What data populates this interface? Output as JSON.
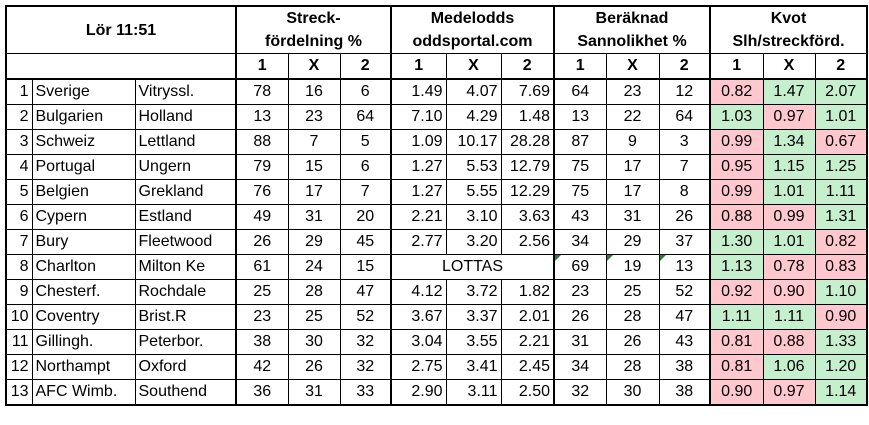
{
  "header": {
    "title": "Lör 11:51",
    "group1": [
      "Streck-",
      "fördelning %"
    ],
    "group2": [
      "Medelodds",
      "oddsportal.com"
    ],
    "group3": [
      "Beräknad",
      "Sannolikhet %"
    ],
    "group4": [
      "Kvot",
      "Slh/streckförd."
    ],
    "sub": [
      "1",
      "X",
      "2"
    ]
  },
  "lottas_label": "LOTTAS",
  "colors": {
    "red": "#ffc7ce",
    "green": "#c6efce"
  },
  "rows": [
    {
      "n": "1",
      "home": "Sverige",
      "away": "Vitryssl.",
      "s": [
        "78",
        "16",
        "6"
      ],
      "o": [
        "1.49",
        "4.07",
        "7.69"
      ],
      "p": [
        "64",
        "23",
        "12"
      ],
      "k": [
        "0.82",
        "1.47",
        "2.07"
      ],
      "kc": [
        "red",
        "grn",
        "grn"
      ]
    },
    {
      "n": "2",
      "home": "Bulgarien",
      "away": "Holland",
      "s": [
        "13",
        "23",
        "64"
      ],
      "o": [
        "7.10",
        "4.29",
        "1.48"
      ],
      "p": [
        "13",
        "22",
        "64"
      ],
      "k": [
        "1.03",
        "0.97",
        "1.01"
      ],
      "kc": [
        "grn",
        "red",
        "grn"
      ]
    },
    {
      "n": "3",
      "home": "Schweiz",
      "away": "Lettland",
      "s": [
        "88",
        "7",
        "5"
      ],
      "o": [
        "1.09",
        "10.17",
        "28.28"
      ],
      "p": [
        "87",
        "9",
        "3"
      ],
      "k": [
        "0.99",
        "1.34",
        "0.67"
      ],
      "kc": [
        "red",
        "grn",
        "red"
      ]
    },
    {
      "n": "4",
      "home": "Portugal",
      "away": "Ungern",
      "s": [
        "79",
        "15",
        "6"
      ],
      "o": [
        "1.27",
        "5.53",
        "12.79"
      ],
      "p": [
        "75",
        "17",
        "7"
      ],
      "k": [
        "0.95",
        "1.15",
        "1.25"
      ],
      "kc": [
        "red",
        "grn",
        "grn"
      ]
    },
    {
      "n": "5",
      "home": "Belgien",
      "away": "Grekland",
      "s": [
        "76",
        "17",
        "7"
      ],
      "o": [
        "1.27",
        "5.55",
        "12.29"
      ],
      "p": [
        "75",
        "17",
        "8"
      ],
      "k": [
        "0.99",
        "1.01",
        "1.11"
      ],
      "kc": [
        "red",
        "grn",
        "grn"
      ]
    },
    {
      "n": "6",
      "home": "Cypern",
      "away": "Estland",
      "s": [
        "49",
        "31",
        "20"
      ],
      "o": [
        "2.21",
        "3.10",
        "3.63"
      ],
      "p": [
        "43",
        "31",
        "26"
      ],
      "k": [
        "0.88",
        "0.99",
        "1.31"
      ],
      "kc": [
        "red",
        "red",
        "grn"
      ]
    },
    {
      "n": "7",
      "home": "Bury",
      "away": "Fleetwood",
      "s": [
        "26",
        "29",
        "45"
      ],
      "o": [
        "2.77",
        "3.20",
        "2.56"
      ],
      "p": [
        "34",
        "29",
        "37"
      ],
      "k": [
        "1.30",
        "1.01",
        "0.82"
      ],
      "kc": [
        "grn",
        "grn",
        "red"
      ]
    },
    {
      "n": "8",
      "home": "Charlton",
      "away": "Milton Ke",
      "s": [
        "61",
        "24",
        "15"
      ],
      "o": [],
      "p": [
        "69",
        "19",
        "13"
      ],
      "k": [
        "1.13",
        "0.78",
        "0.83"
      ],
      "kc": [
        "grn",
        "red",
        "red"
      ],
      "lottas": true
    },
    {
      "n": "9",
      "home": "Chesterf.",
      "away": "Rochdale",
      "s": [
        "25",
        "28",
        "47"
      ],
      "o": [
        "4.12",
        "3.72",
        "1.82"
      ],
      "p": [
        "23",
        "25",
        "52"
      ],
      "k": [
        "0.92",
        "0.90",
        "1.10"
      ],
      "kc": [
        "red",
        "red",
        "grn"
      ]
    },
    {
      "n": "10",
      "home": "Coventry",
      "away": "Brist.R",
      "s": [
        "23",
        "25",
        "52"
      ],
      "o": [
        "3.67",
        "3.37",
        "2.01"
      ],
      "p": [
        "26",
        "28",
        "47"
      ],
      "k": [
        "1.11",
        "1.11",
        "0.90"
      ],
      "kc": [
        "grn",
        "grn",
        "red"
      ]
    },
    {
      "n": "11",
      "home": "Gillingh.",
      "away": "Peterbor.",
      "s": [
        "38",
        "30",
        "32"
      ],
      "o": [
        "3.04",
        "3.55",
        "2.21"
      ],
      "p": [
        "31",
        "26",
        "43"
      ],
      "k": [
        "0.81",
        "0.88",
        "1.33"
      ],
      "kc": [
        "red",
        "red",
        "grn"
      ]
    },
    {
      "n": "12",
      "home": "Northampt",
      "away": "Oxford",
      "s": [
        "42",
        "26",
        "32"
      ],
      "o": [
        "2.75",
        "3.41",
        "2.45"
      ],
      "p": [
        "34",
        "28",
        "38"
      ],
      "k": [
        "0.81",
        "1.06",
        "1.20"
      ],
      "kc": [
        "red",
        "grn",
        "grn"
      ]
    },
    {
      "n": "13",
      "home": "AFC Wimb.",
      "away": "Southend",
      "s": [
        "36",
        "31",
        "33"
      ],
      "o": [
        "2.90",
        "3.11",
        "2.50"
      ],
      "p": [
        "32",
        "30",
        "38"
      ],
      "k": [
        "0.90",
        "0.97",
        "1.14"
      ],
      "kc": [
        "red",
        "red",
        "grn"
      ]
    }
  ]
}
